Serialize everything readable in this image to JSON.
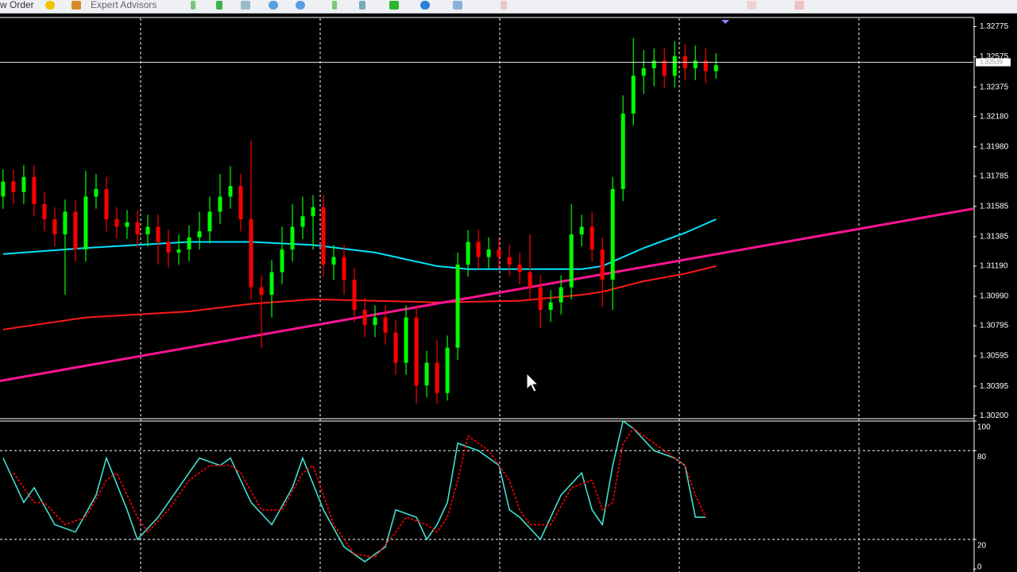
{
  "toolbar": {
    "items": [
      "w Order",
      "Expert Advisors"
    ]
  },
  "chart_data": [
    {
      "type": "candlestick",
      "xlim": [
        -0.3,
        93.9
      ],
      "ylim": [
        1.3018,
        1.3282
      ],
      "yticks": [
        1.32775,
        1.32575,
        1.32375,
        {
          "value": 1.3218,
          "label": "1.32180"
        },
        {
          "value": 1.3198,
          "label": "1.31980"
        },
        1.31785,
        1.31585,
        1.31385,
        {
          "value": 1.3119,
          "label": "1.31190"
        },
        {
          "value": 1.3099,
          "label": "1.30990"
        },
        1.30795,
        1.30595,
        1.30395,
        {
          "value": 1.302,
          "label": "1.30200"
        }
      ],
      "grid": true,
      "up_color": "#00ff00",
      "down_color": "#ff0000",
      "open": [
        1.3165,
        1.3175,
        1.3168,
        1.3178,
        1.316,
        1.315,
        1.314,
        1.3155,
        1.313,
        1.3165,
        1.317,
        1.315,
        1.3145,
        1.3148,
        1.314,
        1.3145,
        1.3135,
        1.3128,
        1.313,
        1.3138,
        1.3142,
        1.3155,
        1.3165,
        1.3172,
        1.315,
        1.3105,
        1.31,
        1.3115,
        1.313,
        1.3145,
        1.3152,
        1.3158,
        1.312,
        1.3125,
        1.311,
        1.309,
        1.308,
        1.3085,
        1.3075,
        1.3055,
        1.3085,
        1.304,
        1.3055,
        1.3035,
        1.3065,
        1.312,
        1.3135,
        1.3125,
        1.313,
        1.3125,
        1.312,
        1.3115,
        1.3105,
        1.309,
        1.3095,
        1.3105,
        1.314,
        1.3145,
        1.313,
        1.311,
        1.317,
        1.322,
        1.3245,
        1.325,
        1.3255,
        1.3245,
        1.3258,
        1.325,
        1.3255,
        1.3248
      ],
      "high": [
        1.3183,
        1.3183,
        1.3186,
        1.3186,
        1.3168,
        1.3158,
        1.3163,
        1.3163,
        1.3182,
        1.318,
        1.3178,
        1.3158,
        1.3156,
        1.3156,
        1.3153,
        1.3153,
        1.3143,
        1.314,
        1.3146,
        1.3155,
        1.3165,
        1.318,
        1.3185,
        1.318,
        1.3202,
        1.3113,
        1.3123,
        1.3145,
        1.316,
        1.3165,
        1.3166,
        1.3166,
        1.3133,
        1.3133,
        1.3118,
        1.3098,
        1.3093,
        1.3093,
        1.3083,
        1.3093,
        1.3093,
        1.3063,
        1.307,
        1.3073,
        1.3128,
        1.3143,
        1.3143,
        1.3138,
        1.3138,
        1.3133,
        1.3128,
        1.314,
        1.3113,
        1.3103,
        1.3113,
        1.316,
        1.3153,
        1.3155,
        1.3138,
        1.3178,
        1.3232,
        1.327,
        1.3262,
        1.3263,
        1.3263,
        1.3268,
        1.3266,
        1.3265,
        1.3263,
        1.326
      ],
      "low": [
        1.3157,
        1.316,
        1.316,
        1.3152,
        1.3142,
        1.3132,
        1.31,
        1.3122,
        1.3122,
        1.3157,
        1.3142,
        1.3137,
        1.3137,
        1.3132,
        1.3132,
        1.312,
        1.3118,
        1.312,
        1.3122,
        1.313,
        1.3134,
        1.3147,
        1.3157,
        1.3142,
        1.3097,
        1.3065,
        1.3085,
        1.3107,
        1.3122,
        1.3137,
        1.313,
        1.3112,
        1.311,
        1.31,
        1.3082,
        1.3072,
        1.3072,
        1.3067,
        1.3047,
        1.3047,
        1.3028,
        1.3032,
        1.3028,
        1.303,
        1.3057,
        1.3112,
        1.3117,
        1.3117,
        1.3117,
        1.3112,
        1.3107,
        1.3097,
        1.3078,
        1.3082,
        1.3087,
        1.3097,
        1.3132,
        1.3122,
        1.3092,
        1.309,
        1.3162,
        1.3212,
        1.3233,
        1.3238,
        1.3237,
        1.3237,
        1.3242,
        1.3242,
        1.324,
        1.3243
      ],
      "close": [
        1.3175,
        1.3168,
        1.3178,
        1.316,
        1.315,
        1.314,
        1.3155,
        1.313,
        1.3165,
        1.317,
        1.315,
        1.3145,
        1.3148,
        1.314,
        1.3145,
        1.3135,
        1.3128,
        1.313,
        1.3138,
        1.3142,
        1.3155,
        1.3165,
        1.3172,
        1.315,
        1.3105,
        1.31,
        1.3115,
        1.313,
        1.3145,
        1.3152,
        1.3158,
        1.312,
        1.3125,
        1.311,
        1.309,
        1.308,
        1.3085,
        1.3075,
        1.3055,
        1.3085,
        1.304,
        1.3055,
        1.3035,
        1.3065,
        1.312,
        1.3135,
        1.3125,
        1.313,
        1.3125,
        1.312,
        1.3115,
        1.3105,
        1.309,
        1.3095,
        1.3105,
        1.314,
        1.3145,
        1.313,
        1.311,
        1.317,
        1.322,
        1.3245,
        1.325,
        1.3255,
        1.3245,
        1.3258,
        1.325,
        1.3255,
        1.3248,
        1.3252
      ],
      "current_price": 1.32539,
      "lines": [
        {
          "color": "#00e5ff",
          "x": [
            0,
            8,
            18,
            24,
            30,
            36,
            42,
            45,
            50,
            56,
            58,
            62,
            66,
            69
          ],
          "values": [
            1.3127,
            1.3131,
            1.3135,
            1.3135,
            1.3133,
            1.3128,
            1.3119,
            1.3117,
            1.3117,
            1.3117,
            1.3119,
            1.3131,
            1.3141,
            1.315
          ]
        },
        {
          "color": "#ff1a1a",
          "x": [
            0,
            8,
            18,
            24,
            30,
            36,
            42,
            50,
            56,
            58,
            62,
            66,
            69
          ],
          "values": [
            1.3077,
            1.3085,
            1.3089,
            1.3094,
            1.3097,
            1.3096,
            1.3095,
            1.3096,
            1.31,
            1.3102,
            1.3109,
            1.3114,
            1.3119
          ]
        },
        {
          "color": "#ff1493",
          "x": [
            -0.3,
            93.9
          ],
          "values": [
            1.3043,
            1.3157
          ]
        }
      ]
    },
    {
      "type": "line",
      "xlim": [
        -0.3,
        93.9
      ],
      "ylim": [
        -2,
        100
      ],
      "yticks": [
        100,
        80,
        20,
        0
      ],
      "levels": [
        80,
        20
      ],
      "series": [
        {
          "color": "#40e0d0",
          "x": [
            0,
            2,
            3,
            5,
            7,
            9,
            10,
            12,
            13,
            15,
            17,
            19,
            21,
            22,
            24,
            26,
            28,
            29,
            31,
            33,
            35,
            37,
            38,
            40,
            41,
            42,
            43,
            44,
            46,
            48,
            49,
            50,
            52,
            54,
            56,
            57,
            58,
            59,
            60,
            61,
            63,
            65,
            66,
            67,
            68
          ],
          "values": [
            75,
            45,
            55,
            30,
            25,
            50,
            75,
            40,
            20,
            35,
            55,
            75,
            70,
            75,
            45,
            30,
            55,
            75,
            40,
            15,
            5,
            15,
            40,
            35,
            20,
            30,
            45,
            85,
            80,
            70,
            40,
            35,
            20,
            50,
            65,
            40,
            30,
            70,
            100,
            95,
            80,
            75,
            70,
            35,
            35
          ]
        },
        {
          "color": "#ff0000",
          "dashed": true,
          "x": [
            1,
            3,
            4,
            6,
            8,
            10,
            11,
            13,
            14,
            16,
            18,
            20,
            22,
            23,
            25,
            27,
            29,
            30,
            32,
            34,
            36,
            38,
            39,
            41,
            42,
            43,
            44,
            45,
            47,
            49,
            50,
            51,
            53,
            55,
            57,
            58,
            59,
            60,
            61,
            62,
            64,
            66,
            67,
            68
          ],
          "values": [
            65,
            45,
            45,
            30,
            35,
            60,
            65,
            35,
            25,
            40,
            60,
            70,
            70,
            65,
            40,
            40,
            65,
            70,
            30,
            10,
            8,
            25,
            35,
            30,
            25,
            35,
            60,
            90,
            80,
            60,
            40,
            30,
            30,
            55,
            60,
            40,
            45,
            85,
            95,
            90,
            80,
            70,
            50,
            35
          ]
        }
      ]
    }
  ]
}
